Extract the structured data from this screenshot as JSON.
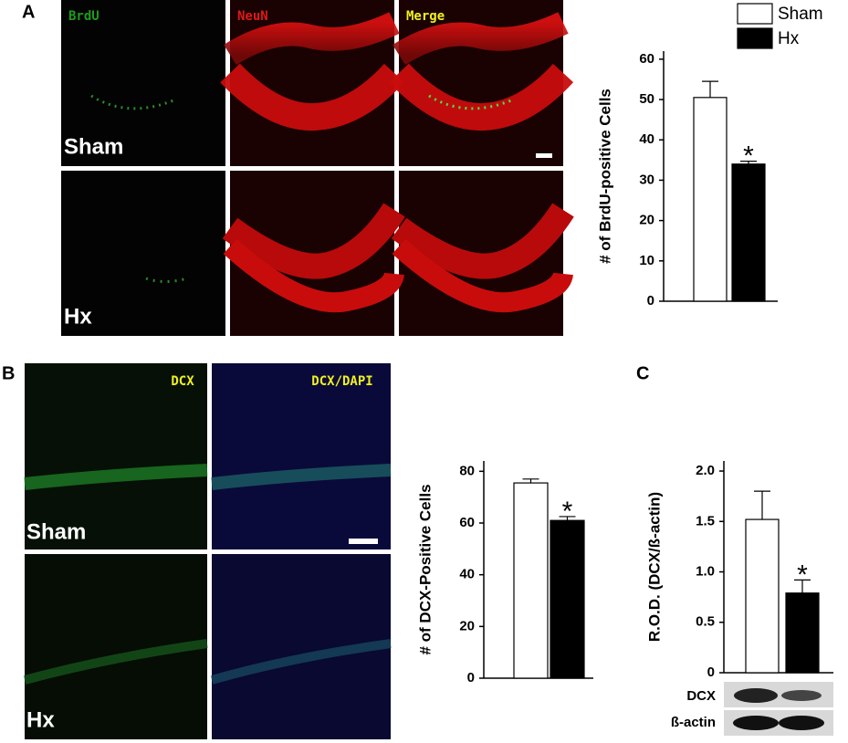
{
  "panel_labels": [
    "A",
    "B",
    "C"
  ],
  "images": {
    "a": {
      "channels": [
        "BrdU",
        "NeuN",
        "Merge"
      ],
      "rows": [
        "Sham",
        "Hx"
      ]
    },
    "b": {
      "channels": [
        "DCX",
        "DCX/DAPI"
      ],
      "rows": [
        "Sham",
        "Hx"
      ]
    }
  },
  "blot": {
    "labels": [
      "DCX",
      "ß-actin"
    ]
  },
  "chart_data": [
    {
      "type": "bar",
      "y_label": "# of BrdU-positive Cells",
      "categories": [
        null
      ],
      "series": [
        {
          "name": "Sham",
          "color": "#ffffff",
          "values": [
            50.5
          ],
          "errors": [
            4
          ]
        },
        {
          "name": "Hx",
          "color": "#000000",
          "values": [
            34
          ],
          "errors": [
            0.7
          ]
        }
      ],
      "annotation": "*",
      "ylim": [
        0,
        62
      ],
      "yticks": [
        0,
        10,
        20,
        30,
        40,
        50,
        60
      ]
    },
    {
      "type": "bar",
      "y_label": "# of DCX-Positive Cells",
      "categories": [
        null
      ],
      "series": [
        {
          "color": "#ffffff",
          "values": [
            75.5
          ],
          "errors": [
            1.5
          ]
        },
        {
          "color": "#000000",
          "values": [
            61
          ],
          "errors": [
            1.5
          ]
        }
      ],
      "annotation": "*",
      "ylim": [
        0,
        84
      ],
      "yticks": [
        0,
        20,
        40,
        60,
        80
      ]
    },
    {
      "type": "bar",
      "y_label": "R.O.D. (DCX/ß-actin)",
      "categories": [
        null
      ],
      "series": [
        {
          "color": "#ffffff",
          "values": [
            1.52
          ],
          "errors": [
            0.28
          ]
        },
        {
          "color": "#000000",
          "values": [
            0.79
          ],
          "errors": [
            0.13
          ]
        }
      ],
      "annotation": "*",
      "ylim": [
        0,
        2.1
      ],
      "yticks": [
        0,
        0.5,
        {
          "value": 1,
          "label": "1.0"
        },
        1.5,
        {
          "value": 2,
          "label": "2.0"
        }
      ]
    }
  ]
}
